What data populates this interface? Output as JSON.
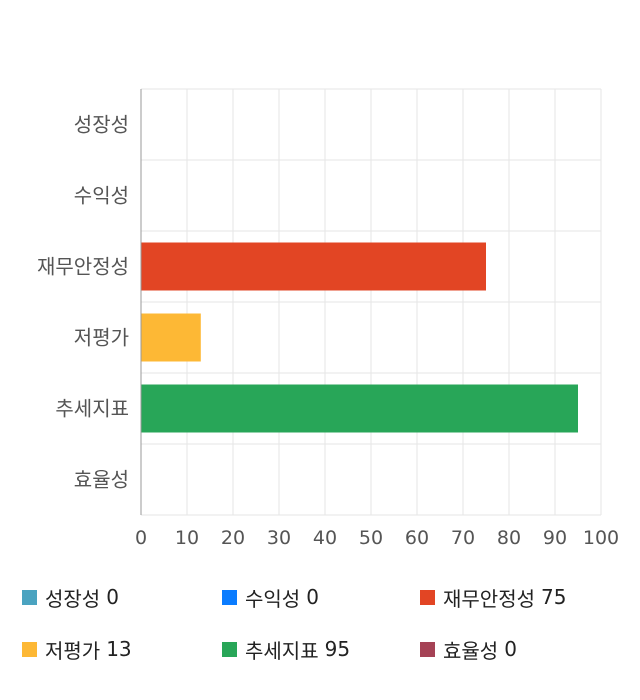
{
  "chart_data": {
    "type": "bar",
    "orientation": "horizontal",
    "categories": [
      "성장성",
      "수익성",
      "재무안정성",
      "저평가",
      "추세지표",
      "효율성"
    ],
    "values": [
      0,
      0,
      75,
      13,
      95,
      0
    ],
    "colors": [
      "#4aa3c0",
      "#0a7cff",
      "#e24524",
      "#fdb835",
      "#28a658",
      "#a54255"
    ],
    "xlim": [
      0,
      100
    ],
    "xticks": [
      "0",
      "10",
      "20",
      "30",
      "40",
      "50",
      "60",
      "70",
      "80",
      "90",
      "100"
    ],
    "grid": true,
    "legend_position": "bottom"
  },
  "legend": {
    "items": [
      {
        "label": "성장성",
        "value": "0"
      },
      {
        "label": "수익성",
        "value": "0"
      },
      {
        "label": "재무안정성",
        "value": "75"
      },
      {
        "label": "저평가",
        "value": "13"
      },
      {
        "label": "추세지표",
        "value": "95"
      },
      {
        "label": "효율성",
        "value": "0"
      }
    ]
  }
}
